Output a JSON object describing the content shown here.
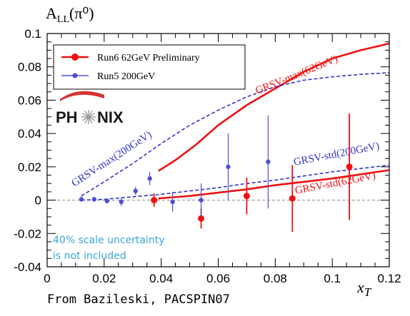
{
  "chart_data": {
    "type": "scatter",
    "ylabel": "A_LL(π⁰)",
    "xlabel": "x_T",
    "xlim": [
      0,
      0.12
    ],
    "ylim": [
      -0.04,
      0.1
    ],
    "x_ticks": [
      "0",
      "0.02",
      "0.04",
      "0.06",
      "0.08",
      "0.1",
      "0.12"
    ],
    "y_ticks": [
      "-0.04",
      "-0.02",
      "0",
      "0.02",
      "0.04",
      "0.06",
      "0.08",
      "0.1"
    ],
    "grid": false,
    "legend_position": "top-left",
    "series": [
      {
        "name": "Run6  62GeV Preliminary",
        "color": "#ee1111",
        "points": [
          {
            "x": 0.0375,
            "y": 0.0,
            "err": 0.004
          },
          {
            "x": 0.054,
            "y": -0.011,
            "err": 0.006
          },
          {
            "x": 0.07,
            "y": 0.0025,
            "err": 0.011
          },
          {
            "x": 0.086,
            "y": 0.001,
            "err": 0.02
          },
          {
            "x": 0.106,
            "y": 0.02,
            "err": 0.032
          }
        ]
      },
      {
        "name": "Run5  200GeV",
        "color": "#4f4fd6",
        "points": [
          {
            "x": 0.012,
            "y": 0.0005,
            "err": 0.0015
          },
          {
            "x": 0.0165,
            "y": 0.0005,
            "err": 0.0015
          },
          {
            "x": 0.021,
            "y": -0.0005,
            "err": 0.0015
          },
          {
            "x": 0.026,
            "y": -0.001,
            "err": 0.0025
          },
          {
            "x": 0.031,
            "y": 0.0055,
            "err": 0.0025
          },
          {
            "x": 0.036,
            "y": 0.013,
            "err": 0.004
          },
          {
            "x": 0.044,
            "y": -0.001,
            "err": 0.006
          },
          {
            "x": 0.054,
            "y": 0.0,
            "err": 0.01
          },
          {
            "x": 0.0635,
            "y": 0.02,
            "err": 0.02
          },
          {
            "x": 0.0775,
            "y": 0.023,
            "err": 0.028
          }
        ]
      }
    ],
    "curves": [
      {
        "label": "GRSV-max(62GeV)",
        "color": "#ee1111",
        "dashed": false,
        "points": [
          [
            0.039,
            0.0175
          ],
          [
            0.045,
            0.024
          ],
          [
            0.052,
            0.033
          ],
          [
            0.06,
            0.045
          ],
          [
            0.07,
            0.057
          ],
          [
            0.08,
            0.067
          ],
          [
            0.09,
            0.077
          ],
          [
            0.1,
            0.085
          ],
          [
            0.11,
            0.09
          ],
          [
            0.12,
            0.094
          ]
        ]
      },
      {
        "label": "GRSV-max(200GeV)",
        "color": "#3333cc",
        "dashed": true,
        "points": [
          [
            0.012,
            0.0025
          ],
          [
            0.02,
            0.011
          ],
          [
            0.03,
            0.022
          ],
          [
            0.04,
            0.034
          ],
          [
            0.05,
            0.045
          ],
          [
            0.06,
            0.054
          ],
          [
            0.07,
            0.062
          ],
          [
            0.08,
            0.068
          ],
          [
            0.09,
            0.072
          ],
          [
            0.1,
            0.074
          ],
          [
            0.11,
            0.0755
          ],
          [
            0.12,
            0.0765
          ]
        ]
      },
      {
        "label": "GRSV-std(200GeV)",
        "color": "#3333cc",
        "dashed": true,
        "points": [
          [
            0.012,
            0.0
          ],
          [
            0.02,
            0.0005
          ],
          [
            0.03,
            0.002
          ],
          [
            0.04,
            0.0035
          ],
          [
            0.05,
            0.0055
          ],
          [
            0.06,
            0.0075
          ],
          [
            0.07,
            0.01
          ],
          [
            0.08,
            0.012
          ],
          [
            0.09,
            0.0145
          ],
          [
            0.1,
            0.017
          ],
          [
            0.11,
            0.019
          ],
          [
            0.12,
            0.021
          ]
        ]
      },
      {
        "label": "GRSV-std(62GeV)",
        "color": "#ee1111",
        "dashed": false,
        "points": [
          [
            0.039,
            0.001
          ],
          [
            0.05,
            0.0025
          ],
          [
            0.06,
            0.0045
          ],
          [
            0.07,
            0.0065
          ],
          [
            0.08,
            0.009
          ],
          [
            0.09,
            0.011
          ],
          [
            0.1,
            0.013
          ],
          [
            0.11,
            0.0155
          ],
          [
            0.12,
            0.018
          ]
        ]
      }
    ],
    "annotations": [
      "40% scale uncertainty",
      "is not included"
    ],
    "logo_text": "PHENIX"
  },
  "footer": {
    "credit": "From Bazileski, PACSPIN07"
  }
}
